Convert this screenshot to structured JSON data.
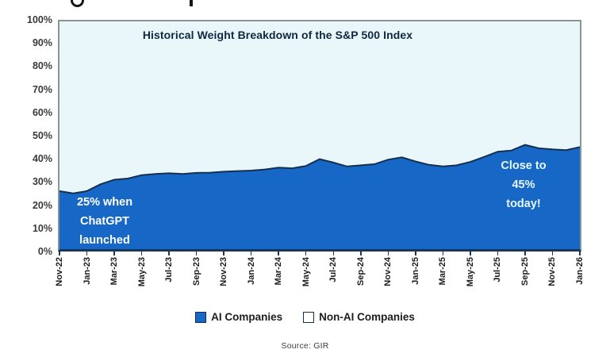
{
  "chart_data": {
    "type": "area",
    "title": "Historical Weight Breakdown of the S&P 500 Index",
    "grid": false,
    "ylim": [
      0,
      100
    ],
    "y_axis": {
      "ticks": [
        "100%",
        "90%",
        "80%",
        "70%",
        "60%",
        "50%",
        "40%",
        "30%",
        "20%",
        "10%",
        "0%"
      ]
    },
    "x_axis": {
      "tick_labels": [
        "Nov-22",
        "Jan-23",
        "Mar-23",
        "May-23",
        "Jul-23",
        "Sep-23",
        "Nov-23",
        "Jan-24",
        "Mar-24",
        "May-24",
        "Jul-24",
        "Sep-24",
        "Nov-24",
        "Jan-25",
        "Mar-25",
        "May-25",
        "Jul-25",
        "Sep-25",
        "Nov-25",
        "Jan-26"
      ]
    },
    "months": [
      "Nov-22",
      "Dec-22",
      "Jan-23",
      "Feb-23",
      "Mar-23",
      "Apr-23",
      "May-23",
      "Jun-23",
      "Jul-23",
      "Aug-23",
      "Sep-23",
      "Oct-23",
      "Nov-23",
      "Dec-23",
      "Jan-24",
      "Feb-24",
      "Mar-24",
      "Apr-24",
      "May-24",
      "Jun-24",
      "Jul-24",
      "Aug-24",
      "Sep-24",
      "Oct-24",
      "Nov-24",
      "Dec-24",
      "Jan-25",
      "Feb-25",
      "Mar-25",
      "Apr-25",
      "May-25",
      "Jun-25",
      "Jul-25",
      "Aug-25",
      "Sep-25",
      "Oct-25",
      "Nov-25",
      "Dec-25",
      "Jan-26"
    ],
    "series": [
      {
        "name": "AI Companies",
        "color": "#1667C6",
        "values": [
          25.5,
          24.5,
          25.5,
          28.5,
          30.5,
          31,
          32.5,
          33,
          33.3,
          33,
          33.5,
          33.6,
          34,
          34.3,
          34.5,
          35,
          35.8,
          35.5,
          36.5,
          39.5,
          38,
          36.3,
          36.8,
          37.3,
          39.3,
          40.3,
          38.5,
          37,
          36.3,
          36.8,
          38.3,
          40.5,
          42.8,
          43.3,
          45.8,
          44.3,
          43.8,
          43.5,
          44.8
        ]
      },
      {
        "name": "Non-AI Companies",
        "color": "#E9F7FB",
        "stacked_complement_to": 100
      }
    ],
    "annotations": [
      {
        "text": "25% when\nChatGPT\nlaunched",
        "color": "#FFFFFF"
      },
      {
        "text": "Close to 45%\ntoday!",
        "color": "#E8F8FF"
      }
    ],
    "legend": {
      "position": "bottom",
      "items": [
        {
          "label": "AI Companies",
          "fill": "#1667C6",
          "border": "#14304F"
        },
        {
          "label": "Non-AI Companies",
          "fill": "#FFFFFF",
          "border": "#14304F"
        }
      ]
    },
    "styles": {
      "plot_bg": "#E9F7FB",
      "area_fill": "#1667C6",
      "area_stroke": "#14304F",
      "plot_border": "#8A9399",
      "axis_line": "#17375E"
    }
  },
  "footer": {
    "source": "Source: GIR"
  }
}
